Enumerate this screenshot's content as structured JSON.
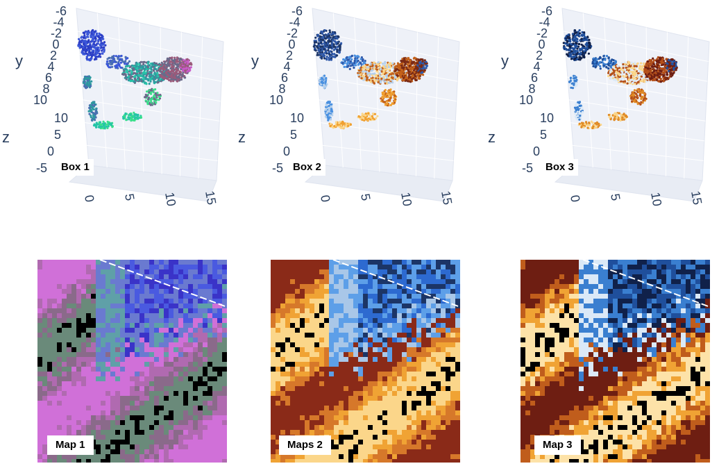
{
  "chart_data": [
    {
      "type": "scatter",
      "id": "box1",
      "label": "Box 1",
      "xlabel": "",
      "ylabel": "y",
      "zlabel": "z",
      "x_ticks": [
        "0",
        "5",
        "10",
        "15"
      ],
      "y_ticks": [
        "-6",
        "-4",
        "-2",
        "0",
        "2",
        "4",
        "6",
        "8",
        "10"
      ],
      "z_ticks": [
        "10",
        "5",
        "0",
        "-5"
      ],
      "palette": [
        "#2b3cc4",
        "#3b57d8",
        "#4a6fb0",
        "#2d9aa0",
        "#25c4a8",
        "#39e08a",
        "#6a6a8a",
        "#9a5a7a",
        "#c85ac8",
        "#d07070",
        "#5a7a80"
      ]
    },
    {
      "type": "scatter",
      "id": "box2",
      "label": "Box 2",
      "xlabel": "",
      "ylabel": "y",
      "zlabel": "z",
      "x_ticks": [
        "0",
        "5",
        "10",
        "15"
      ],
      "y_ticks": [
        "-6",
        "-4",
        "-2",
        "0",
        "2",
        "4",
        "6",
        "8",
        "10"
      ],
      "z_ticks": [
        "10",
        "5",
        "0",
        "-5"
      ],
      "palette": [
        "#1c3566",
        "#2d57a8",
        "#4a90e0",
        "#b5d0ec",
        "#fbd68a",
        "#f0a030",
        "#c4621a",
        "#7a2a14",
        "#2a5bb0"
      ]
    },
    {
      "type": "scatter",
      "id": "box3",
      "label": "Box 3",
      "xlabel": "",
      "ylabel": "y",
      "zlabel": "z",
      "x_ticks": [
        "0",
        "5",
        "10",
        "15"
      ],
      "y_ticks": [
        "-6",
        "-4",
        "-2",
        "0",
        "2",
        "4",
        "6",
        "8",
        "10"
      ],
      "z_ticks": [
        "10",
        "5",
        "0",
        "-5"
      ],
      "palette": [
        "#10214a",
        "#1f4f9c",
        "#3a7fd0",
        "#dbe9f7",
        "#fbd68a",
        "#e08a24",
        "#b4501a",
        "#6e1e12",
        "#2452a0"
      ]
    },
    {
      "type": "heatmap",
      "id": "map1",
      "label": "Map 1",
      "palette": [
        "#3a33c8",
        "#4a5ae0",
        "#6a7ad0",
        "#5fa0a8",
        "#6a8a7a",
        "#8a6a8a",
        "#b06ab0",
        "#d070d8",
        "#e58ae8",
        "#3de08c",
        "#7a7a7a",
        "#9a8aa0"
      ]
    },
    {
      "type": "heatmap",
      "id": "map2",
      "label": "Maps 2",
      "palette": [
        "#1c3566",
        "#2d6ad0",
        "#5d9fe8",
        "#a9c7e8",
        "#fbd68a",
        "#f0a334",
        "#d6782a",
        "#8a2a18",
        "#1f5ec6"
      ]
    },
    {
      "type": "heatmap",
      "id": "map3",
      "label": "Map 3",
      "palette": [
        "#10214a",
        "#1f4f9c",
        "#3a7fd0",
        "#dbe9f7",
        "#fde2a8",
        "#f0a334",
        "#c05d1c",
        "#6e1e12",
        "#fff3d6"
      ]
    }
  ]
}
